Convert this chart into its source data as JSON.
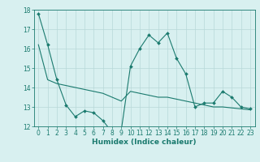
{
  "line1_x": [
    0,
    1,
    2,
    3,
    4,
    5,
    6,
    7,
    8,
    9,
    10,
    11,
    12,
    13,
    14,
    15,
    16,
    17,
    18,
    19,
    20,
    21,
    22,
    23
  ],
  "line1_y": [
    17.8,
    16.2,
    14.4,
    13.1,
    12.5,
    12.8,
    12.7,
    12.3,
    11.7,
    11.8,
    15.1,
    16.0,
    16.7,
    16.3,
    16.8,
    15.5,
    14.7,
    13.0,
    13.2,
    13.2,
    13.8,
    13.5,
    13.0,
    12.9
  ],
  "line2_x": [
    0,
    1,
    2,
    3,
    4,
    5,
    6,
    7,
    8,
    9,
    10,
    11,
    12,
    13,
    14,
    15,
    16,
    17,
    18,
    19,
    20,
    21,
    22,
    23
  ],
  "line2_y": [
    16.2,
    14.4,
    14.2,
    14.1,
    14.0,
    13.9,
    13.8,
    13.7,
    13.5,
    13.3,
    13.8,
    13.7,
    13.6,
    13.5,
    13.5,
    13.4,
    13.3,
    13.2,
    13.1,
    13.0,
    13.0,
    12.95,
    12.9,
    12.85
  ],
  "line_color": "#1a7a6e",
  "bg_color": "#d8f0f0",
  "grid_color": "#b8d8d8",
  "xlabel": "Humidex (Indice chaleur)",
  "ylim": [
    12,
    18
  ],
  "xlim": [
    -0.5,
    23.5
  ],
  "yticks": [
    12,
    13,
    14,
    15,
    16,
    17,
    18
  ],
  "xticks": [
    0,
    1,
    2,
    3,
    4,
    5,
    6,
    7,
    8,
    9,
    10,
    11,
    12,
    13,
    14,
    15,
    16,
    17,
    18,
    19,
    20,
    21,
    22,
    23
  ],
  "marker_size": 2.0,
  "linewidth": 0.8,
  "tick_fontsize": 5.5,
  "xlabel_fontsize": 6.5
}
